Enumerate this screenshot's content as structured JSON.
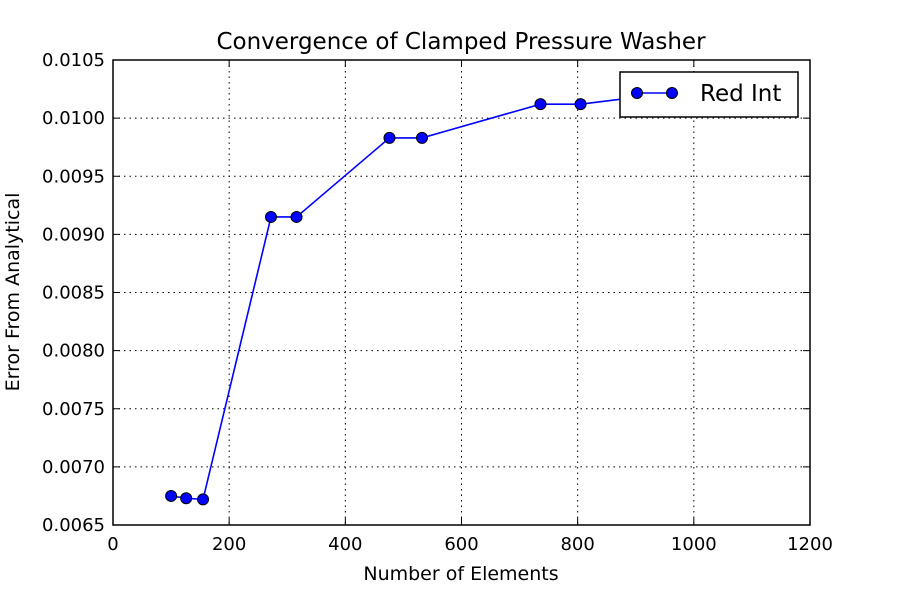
{
  "chart_data": {
    "type": "line",
    "title": "Convergence of Clamped Pressure Washer",
    "xlabel": "Number of Elements",
    "ylabel": "Error From Analytical",
    "xlim": [
      0,
      1200
    ],
    "ylim": [
      0.0065,
      0.0105
    ],
    "x_ticks": [
      {
        "value": 0,
        "label": "0"
      },
      {
        "value": 200,
        "label": "200"
      },
      {
        "value": 400,
        "label": "400"
      },
      {
        "value": 600,
        "label": "600"
      },
      {
        "value": 800,
        "label": "800"
      },
      {
        "value": 1000,
        "label": "1000"
      },
      {
        "value": 1200,
        "label": "1200"
      }
    ],
    "y_ticks": [
      {
        "value": 0.0065,
        "label": "0.0065"
      },
      {
        "value": 0.007,
        "label": "0.0070"
      },
      {
        "value": 0.0075,
        "label": "0.0075"
      },
      {
        "value": 0.008,
        "label": "0.0080"
      },
      {
        "value": 0.0085,
        "label": "0.0085"
      },
      {
        "value": 0.009,
        "label": "0.0090"
      },
      {
        "value": 0.0095,
        "label": "0.0095"
      },
      {
        "value": 0.01,
        "label": "0.0100"
      },
      {
        "value": 0.0105,
        "label": "0.0105"
      }
    ],
    "grid": true,
    "legend_position": "top-right",
    "series": [
      {
        "name": "Red Int",
        "color": "#0000ff",
        "marker": "circle",
        "x": [
          100,
          126,
          155,
          272,
          316,
          476,
          532,
          736,
          805,
          950
        ],
        "y": [
          0.00675,
          0.00673,
          0.00672,
          0.00915,
          0.00915,
          0.00983,
          0.00983,
          0.01012,
          0.01012,
          0.01021
        ]
      }
    ]
  }
}
